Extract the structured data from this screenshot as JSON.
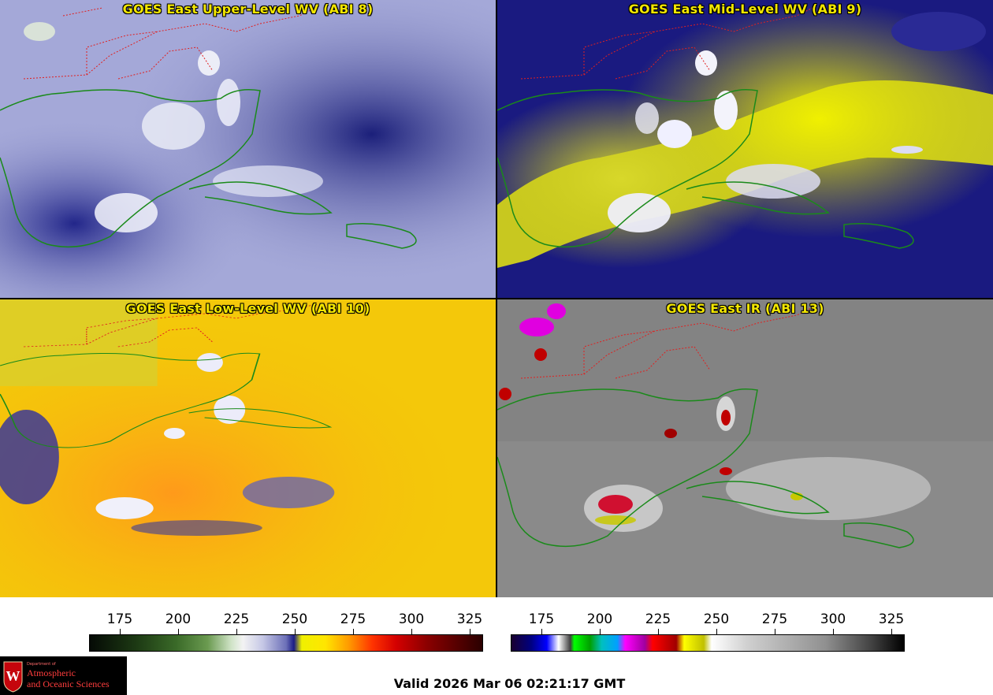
{
  "panels": [
    {
      "title": "GOES East Upper-Level WV (ABI 8)"
    },
    {
      "title": "GOES East Mid-Level WV (ABI 9)"
    },
    {
      "title": "GOES East Low-Level WV (ABI 10)"
    },
    {
      "title": "GOES East IR (ABI 13)"
    }
  ],
  "colorbars": {
    "left": {
      "ticks": [
        "175",
        "200",
        "225",
        "250",
        "275",
        "300",
        "325"
      ]
    },
    "right": {
      "ticks": [
        "175",
        "200",
        "225",
        "250",
        "275",
        "300",
        "325"
      ]
    }
  },
  "logo": {
    "dept": "Department of",
    "line1": "Atmospheric",
    "line2": "and Oceanic Sciences",
    "seal_letter": "W"
  },
  "footer": {
    "valid": "Valid 2026 Mar 06 02:21:17 GMT"
  },
  "colors": {
    "title_yellow": "#f2e600",
    "coastline_green": "#1a8a1a",
    "state_border_red": "#e02020"
  }
}
